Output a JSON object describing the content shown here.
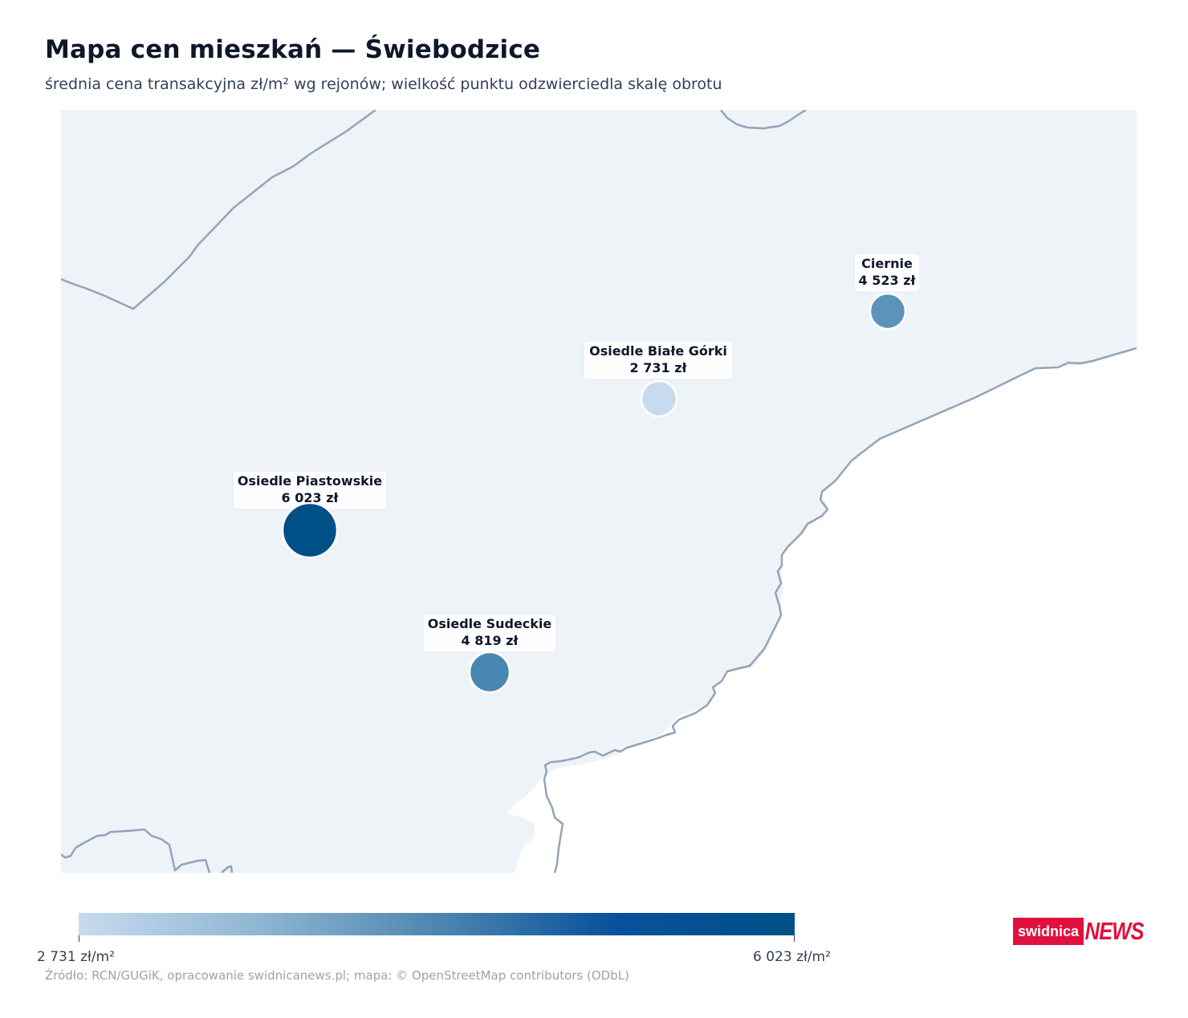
{
  "header": {
    "title": "Mapa cen mieszkań — Świebodzice",
    "subtitle": "średnia cena transakcyjna zł/m² wg rejonów; wielkość punktu odzwierciedla skalę obrotu"
  },
  "map": {
    "region_fill": "#eef3f8",
    "boundary_color": "#94a3b8",
    "points": [
      {
        "name": "Ciernie",
        "price": "4 523 zł",
        "value": 4523,
        "color": "#5b93bb"
      },
      {
        "name": "Osiedle Białe Górki",
        "price": "2 731 zł",
        "value": 2731,
        "color": "#c6dbef"
      },
      {
        "name": "Osiedle Piastowskie",
        "price": "6 023 zł",
        "value": 6023,
        "color": "#005088"
      },
      {
        "name": "Osiedle Sudeckie",
        "price": "4 819 zł",
        "value": 4819,
        "color": "#4a86b2"
      }
    ]
  },
  "legend": {
    "min_label": "2 731 zł/m²",
    "max_label": "6 023 zł/m²",
    "min_value": 2731,
    "max_value": 6023,
    "color_min": "#c6dbef",
    "color_max": "#005088"
  },
  "source": "Źródło: RCN/GUGiK, opracowanie swidnicanews.pl; mapa: © OpenStreetMap contributors (ODbL)",
  "logo": {
    "part1": "swidnica",
    "part2": "NEWS",
    "color": "#e0103f"
  }
}
